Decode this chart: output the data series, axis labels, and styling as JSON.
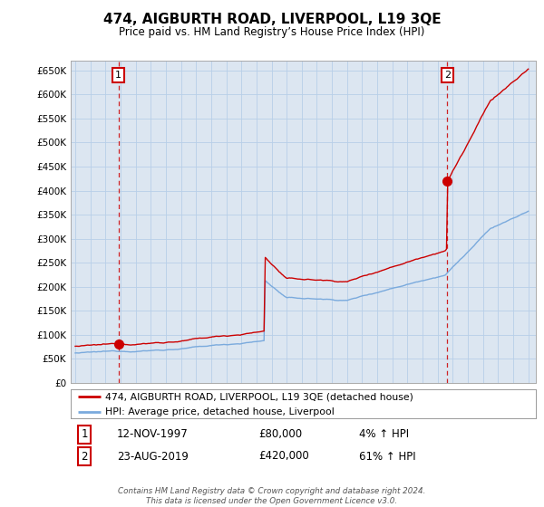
{
  "title": "474, AIGBURTH ROAD, LIVERPOOL, L19 3QE",
  "subtitle": "Price paid vs. HM Land Registry’s House Price Index (HPI)",
  "ylabel_ticks": [
    "£0",
    "£50K",
    "£100K",
    "£150K",
    "£200K",
    "£250K",
    "£300K",
    "£350K",
    "£400K",
    "£450K",
    "£500K",
    "£550K",
    "£600K",
    "£650K"
  ],
  "ytick_vals": [
    0,
    50000,
    100000,
    150000,
    200000,
    250000,
    300000,
    350000,
    400000,
    450000,
    500000,
    550000,
    600000,
    650000
  ],
  "ylim": [
    0,
    670000
  ],
  "purchase1_year": 1997.87,
  "purchase1_price": 80000,
  "purchase2_year": 2019.64,
  "purchase2_price": 420000,
  "legend_line1": "474, AIGBURTH ROAD, LIVERPOOL, L19 3QE (detached house)",
  "legend_line2": "HPI: Average price, detached house, Liverpool",
  "annotation1_label": "1",
  "annotation1_date": "12-NOV-1997",
  "annotation1_price": "£80,000",
  "annotation1_hpi": "4% ↑ HPI",
  "annotation2_label": "2",
  "annotation2_date": "23-AUG-2019",
  "annotation2_price": "£420,000",
  "annotation2_hpi": "61% ↑ HPI",
  "footer": "Contains HM Land Registry data © Crown copyright and database right 2024.\nThis data is licensed under the Open Government Licence v3.0.",
  "line_color_red": "#cc0000",
  "line_color_blue": "#7aaadd",
  "bg_color": "#ffffff",
  "plot_bg_color": "#dce6f1",
  "grid_color": "#b8cfe8"
}
